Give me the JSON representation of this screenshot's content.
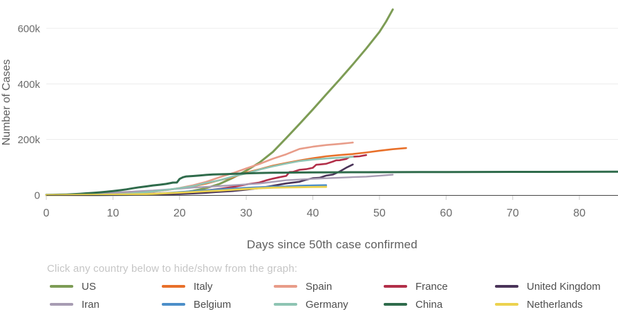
{
  "legend": {
    "hint": "Click any country below to hide/show from the graph:"
  },
  "chart_data": {
    "type": "line",
    "title": "",
    "xlabel": "Days since 50th case confirmed",
    "ylabel": "Number of Cases",
    "x_ticks": [
      0,
      10,
      20,
      30,
      40,
      50,
      60,
      70,
      80
    ],
    "y_ticks": [
      {
        "value": 0,
        "label": "0"
      },
      {
        "value": 200000,
        "label": "200k"
      },
      {
        "value": 400000,
        "label": "400k"
      },
      {
        "value": 600000,
        "label": "600k"
      }
    ],
    "xlim": [
      0,
      85.8
    ],
    "ylim": [
      0,
      700000
    ],
    "grid": true,
    "legend_position": "bottom",
    "colors": {
      "grid": "#ececec",
      "axis": "#444444",
      "tick": "#cccccc",
      "tick_label": "#6b6b6b"
    },
    "series": [
      {
        "name": "US",
        "color": "#7d9c55",
        "width": 3,
        "points": [
          [
            0,
            50
          ],
          [
            4,
            100
          ],
          [
            8,
            250
          ],
          [
            10,
            450
          ],
          [
            12,
            800
          ],
          [
            14,
            1500
          ],
          [
            16,
            2500
          ],
          [
            18,
            4500
          ],
          [
            20,
            8000
          ],
          [
            22,
            15000
          ],
          [
            24,
            25000
          ],
          [
            26,
            40000
          ],
          [
            28,
            62000
          ],
          [
            30,
            88000
          ],
          [
            32,
            117000
          ],
          [
            34,
            155000
          ],
          [
            36,
            205000
          ],
          [
            38,
            256000
          ],
          [
            40,
            308000
          ],
          [
            42,
            362000
          ],
          [
            44,
            415000
          ],
          [
            46,
            470000
          ],
          [
            48,
            527000
          ],
          [
            50,
            587000
          ],
          [
            51,
            625000
          ],
          [
            52,
            668000
          ]
        ]
      },
      {
        "name": "Italy",
        "color": "#e8702a",
        "width": 2.6,
        "points": [
          [
            0,
            50
          ],
          [
            2,
            150
          ],
          [
            4,
            400
          ],
          [
            6,
            1100
          ],
          [
            8,
            2000
          ],
          [
            10,
            3900
          ],
          [
            12,
            5900
          ],
          [
            14,
            9200
          ],
          [
            16,
            12500
          ],
          [
            18,
            17700
          ],
          [
            20,
            24700
          ],
          [
            22,
            31500
          ],
          [
            24,
            41000
          ],
          [
            26,
            53600
          ],
          [
            28,
            64000
          ],
          [
            30,
            80600
          ],
          [
            32,
            92500
          ],
          [
            34,
            105800
          ],
          [
            36,
            115200
          ],
          [
            38,
            124600
          ],
          [
            40,
            132500
          ],
          [
            42,
            139400
          ],
          [
            44,
            144000
          ],
          [
            46,
            147600
          ],
          [
            48,
            153000
          ],
          [
            50,
            159500
          ],
          [
            52,
            165000
          ],
          [
            54,
            169000
          ]
        ]
      },
      {
        "name": "Spain",
        "color": "#e89c89",
        "width": 2.6,
        "points": [
          [
            0,
            50
          ],
          [
            4,
            300
          ],
          [
            6,
            600
          ],
          [
            8,
            1200
          ],
          [
            10,
            2300
          ],
          [
            12,
            5200
          ],
          [
            14,
            7800
          ],
          [
            16,
            11700
          ],
          [
            18,
            18000
          ],
          [
            20,
            25400
          ],
          [
            22,
            35100
          ],
          [
            24,
            47600
          ],
          [
            26,
            64100
          ],
          [
            28,
            78800
          ],
          [
            30,
            95900
          ],
          [
            32,
            112000
          ],
          [
            34,
            130700
          ],
          [
            36,
            146700
          ],
          [
            38,
            166000
          ],
          [
            40,
            174000
          ],
          [
            42,
            180000
          ],
          [
            44,
            184000
          ],
          [
            46,
            189000
          ]
        ]
      },
      {
        "name": "France",
        "color": "#b22f49",
        "width": 2.6,
        "points": [
          [
            0,
            100
          ],
          [
            4,
            200
          ],
          [
            6,
            400
          ],
          [
            8,
            700
          ],
          [
            10,
            1200
          ],
          [
            12,
            2300
          ],
          [
            14,
            3700
          ],
          [
            16,
            4500
          ],
          [
            18,
            6600
          ],
          [
            20,
            9100
          ],
          [
            22,
            12600
          ],
          [
            24,
            16700
          ],
          [
            26,
            22300
          ],
          [
            28,
            29200
          ],
          [
            30,
            38000
          ],
          [
            32,
            45000
          ],
          [
            33,
            52800
          ],
          [
            34,
            59100
          ],
          [
            35,
            64300
          ],
          [
            36,
            68600
          ],
          [
            36.5,
            83000
          ],
          [
            37,
            83100
          ],
          [
            38,
            90900
          ],
          [
            39,
            93000
          ],
          [
            40,
            98000
          ],
          [
            40.5,
            109000
          ],
          [
            41,
            110000
          ],
          [
            42,
            112600
          ],
          [
            43,
            120600
          ],
          [
            43.5,
            125000
          ],
          [
            44,
            125300
          ],
          [
            45,
            129600
          ],
          [
            45.5,
            137000
          ],
          [
            46,
            138000
          ],
          [
            47,
            139500
          ],
          [
            48,
            144000
          ]
        ]
      },
      {
        "name": "United Kingdom",
        "color": "#4a3459",
        "width": 2.6,
        "points": [
          [
            0,
            50
          ],
          [
            4,
            100
          ],
          [
            8,
            300
          ],
          [
            10,
            500
          ],
          [
            12,
            800
          ],
          [
            14,
            1400
          ],
          [
            16,
            1900
          ],
          [
            18,
            2700
          ],
          [
            20,
            4000
          ],
          [
            22,
            5700
          ],
          [
            24,
            8100
          ],
          [
            26,
            11700
          ],
          [
            28,
            14500
          ],
          [
            30,
            19500
          ],
          [
            32,
            25200
          ],
          [
            34,
            33700
          ],
          [
            36,
            41900
          ],
          [
            38,
            47800
          ],
          [
            39,
            55000
          ],
          [
            40,
            60700
          ],
          [
            41,
            61900
          ],
          [
            42,
            70000
          ],
          [
            43,
            73800
          ],
          [
            44,
            84300
          ],
          [
            45,
            98000
          ],
          [
            46,
            110000
          ]
        ]
      },
      {
        "name": "Iran",
        "color": "#a79cb3",
        "width": 2.4,
        "points": [
          [
            0,
            100
          ],
          [
            2,
            1000
          ],
          [
            4,
            2300
          ],
          [
            6,
            4700
          ],
          [
            8,
            7200
          ],
          [
            10,
            9000
          ],
          [
            12,
            11400
          ],
          [
            14,
            13900
          ],
          [
            16,
            16200
          ],
          [
            18,
            19600
          ],
          [
            20,
            23000
          ],
          [
            22,
            27000
          ],
          [
            24,
            29400
          ],
          [
            26,
            32300
          ],
          [
            28,
            35400
          ],
          [
            30,
            38300
          ],
          [
            32,
            41500
          ],
          [
            34,
            47600
          ],
          [
            36,
            53200
          ],
          [
            38,
            55700
          ],
          [
            40,
            58200
          ],
          [
            42,
            60500
          ],
          [
            44,
            62600
          ],
          [
            46,
            64600
          ],
          [
            48,
            66200
          ],
          [
            50,
            69500
          ],
          [
            52,
            73300
          ]
        ]
      },
      {
        "name": "Belgium",
        "color": "#4c8fc9",
        "width": 2.6,
        "points": [
          [
            0,
            200
          ],
          [
            4,
            500
          ],
          [
            8,
            1000
          ],
          [
            10,
            1500
          ],
          [
            12,
            2300
          ],
          [
            14,
            3400
          ],
          [
            16,
            5000
          ],
          [
            18,
            7300
          ],
          [
            20,
            10800
          ],
          [
            22,
            13900
          ],
          [
            24,
            16800
          ],
          [
            26,
            20800
          ],
          [
            28,
            23400
          ],
          [
            30,
            26100
          ],
          [
            32,
            28200
          ],
          [
            34,
            30600
          ],
          [
            36,
            31100
          ],
          [
            38,
            33600
          ],
          [
            40,
            34800
          ],
          [
            42,
            35500
          ]
        ]
      },
      {
        "name": "Germany",
        "color": "#8ec4b3",
        "width": 2.6,
        "points": [
          [
            0,
            100
          ],
          [
            2,
            300
          ],
          [
            4,
            700
          ],
          [
            6,
            1100
          ],
          [
            8,
            1600
          ],
          [
            10,
            2400
          ],
          [
            12,
            4600
          ],
          [
            14,
            8200
          ],
          [
            16,
            13000
          ],
          [
            18,
            18300
          ],
          [
            20,
            24900
          ],
          [
            22,
            32000
          ],
          [
            24,
            43900
          ],
          [
            26,
            53300
          ],
          [
            28,
            66900
          ],
          [
            30,
            77900
          ],
          [
            32,
            91700
          ],
          [
            34,
            103400
          ],
          [
            36,
            113300
          ],
          [
            38,
            122200
          ],
          [
            40,
            127600
          ],
          [
            42,
            131400
          ],
          [
            44,
            134700
          ],
          [
            46,
            137400
          ]
        ]
      },
      {
        "name": "China",
        "color": "#2f6b4b",
        "width": 3,
        "points": [
          [
            0,
            600
          ],
          [
            1,
            900
          ],
          [
            2,
            1400
          ],
          [
            3,
            2100
          ],
          [
            4,
            2900
          ],
          [
            5,
            4600
          ],
          [
            6,
            6100
          ],
          [
            7,
            7800
          ],
          [
            8,
            9800
          ],
          [
            9,
            11900
          ],
          [
            10,
            14400
          ],
          [
            11,
            17200
          ],
          [
            12,
            20500
          ],
          [
            13,
            24400
          ],
          [
            14,
            28100
          ],
          [
            15,
            31200
          ],
          [
            16,
            34600
          ],
          [
            17,
            37200
          ],
          [
            18,
            40200
          ],
          [
            19,
            44700
          ],
          [
            19.6,
            45000
          ],
          [
            20,
            58000
          ],
          [
            20.5,
            63900
          ],
          [
            21,
            66900
          ],
          [
            22,
            68500
          ],
          [
            23,
            70500
          ],
          [
            24,
            72400
          ],
          [
            25,
            74200
          ],
          [
            26,
            74700
          ],
          [
            27,
            75500
          ],
          [
            28,
            76300
          ],
          [
            29,
            77200
          ],
          [
            30,
            78100
          ],
          [
            32,
            79400
          ],
          [
            34,
            80100
          ],
          [
            36,
            80700
          ],
          [
            38,
            81100
          ],
          [
            40,
            81400
          ],
          [
            44,
            81800
          ],
          [
            48,
            82100
          ],
          [
            52,
            82400
          ],
          [
            56,
            82700
          ],
          [
            60,
            82900
          ],
          [
            65,
            83100
          ],
          [
            70,
            83300
          ],
          [
            75,
            83500
          ],
          [
            80,
            83700
          ],
          [
            85.8,
            83900
          ]
        ]
      },
      {
        "name": "Netherlands",
        "color": "#ecd24f",
        "width": 2.8,
        "points": [
          [
            0,
            100
          ],
          [
            4,
            400
          ],
          [
            8,
            900
          ],
          [
            10,
            1400
          ],
          [
            12,
            2100
          ],
          [
            14,
            3100
          ],
          [
            16,
            4200
          ],
          [
            18,
            6400
          ],
          [
            20,
            8600
          ],
          [
            22,
            10900
          ],
          [
            24,
            13600
          ],
          [
            26,
            16000
          ],
          [
            28,
            18900
          ],
          [
            30,
            21800
          ],
          [
            32,
            24400
          ],
          [
            34,
            26600
          ],
          [
            36,
            27400
          ],
          [
            38,
            28200
          ],
          [
            40,
            28800
          ],
          [
            42,
            29400
          ]
        ]
      }
    ]
  }
}
